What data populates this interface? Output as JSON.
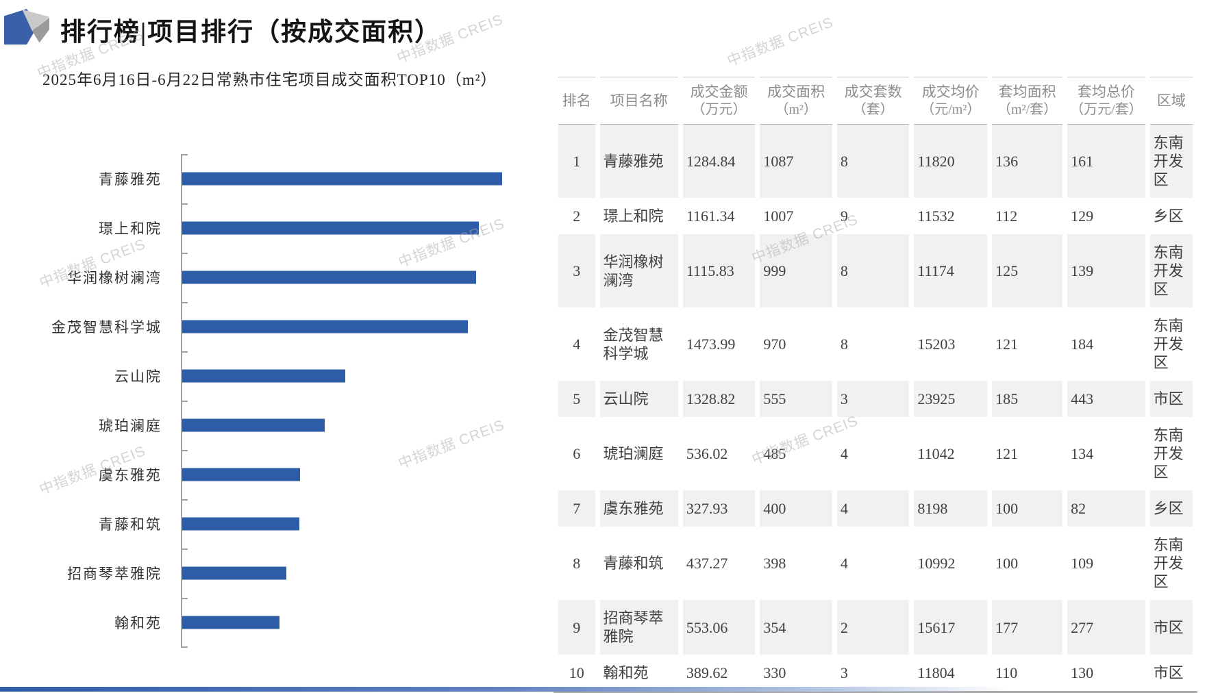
{
  "page": {
    "title": "排行榜|项目排行（按成交面积）",
    "subtitle": "2025年6月16日-6月22日常熟市住宅项目成交面积TOP10（m²）",
    "watermark": "中指数据 CREIS"
  },
  "colors": {
    "bar_blue": "#2f5ca7",
    "axis_gray": "#a0a0a0",
    "zebra_gray": "#f1f1f3"
  },
  "chart_data": {
    "type": "bar",
    "orientation": "horizontal",
    "title": "2025年6月16日-6月22日常熟市住宅项目成交面积TOP10（m²）",
    "categories": [
      "青藤雅苑",
      "璟上和院",
      "华润橡树澜湾",
      "金茂智慧科学城",
      "云山院",
      "琥珀澜庭",
      "虞东雅苑",
      "青藤和筑",
      "招商琴萃雅院",
      "翰和苑"
    ],
    "values": [
      1087,
      1007,
      999,
      970,
      555,
      485,
      400,
      398,
      354,
      330
    ],
    "series_name": "成交面积（m²）",
    "xlim": [
      0,
      1150
    ],
    "grid": false,
    "legend": false,
    "value_labels_visible": false
  },
  "table": {
    "headers": [
      {
        "label": "排名",
        "unit": ""
      },
      {
        "label": "项目名称",
        "unit": ""
      },
      {
        "label": "成交金额",
        "unit": "（万元）"
      },
      {
        "label": "成交面积",
        "unit": "（m²）"
      },
      {
        "label": "成交套数",
        "unit": "（套）"
      },
      {
        "label": "成交均价",
        "unit": "（元/m²）"
      },
      {
        "label": "套均面积",
        "unit": "（m²/套）"
      },
      {
        "label": "套均总价",
        "unit": "（万元/套）"
      },
      {
        "label": "区域",
        "unit": ""
      }
    ],
    "rows": [
      [
        "1",
        "青藤雅苑",
        "1284.84",
        "1087",
        "8",
        "11820",
        "136",
        "161",
        "东南开发区"
      ],
      [
        "2",
        "璟上和院",
        "1161.34",
        "1007",
        "9",
        "11532",
        "112",
        "129",
        "乡区"
      ],
      [
        "3",
        "华润橡树澜湾",
        "1115.83",
        "999",
        "8",
        "11174",
        "125",
        "139",
        "东南开发区"
      ],
      [
        "4",
        "金茂智慧科学城",
        "1473.99",
        "970",
        "8",
        "15203",
        "121",
        "184",
        "东南开发区"
      ],
      [
        "5",
        "云山院",
        "1328.82",
        "555",
        "3",
        "23925",
        "185",
        "443",
        "市区"
      ],
      [
        "6",
        "琥珀澜庭",
        "536.02",
        "485",
        "4",
        "11042",
        "121",
        "134",
        "东南开发区"
      ],
      [
        "7",
        "虞东雅苑",
        "327.93",
        "400",
        "4",
        "8198",
        "100",
        "82",
        "乡区"
      ],
      [
        "8",
        "青藤和筑",
        "437.27",
        "398",
        "4",
        "10992",
        "100",
        "109",
        "东南开发区"
      ],
      [
        "9",
        "招商琴萃雅院",
        "553.06",
        "354",
        "2",
        "15617",
        "177",
        "277",
        "市区"
      ],
      [
        "10",
        "翰和苑",
        "389.62",
        "330",
        "3",
        "11804",
        "110",
        "130",
        "市区"
      ]
    ]
  }
}
